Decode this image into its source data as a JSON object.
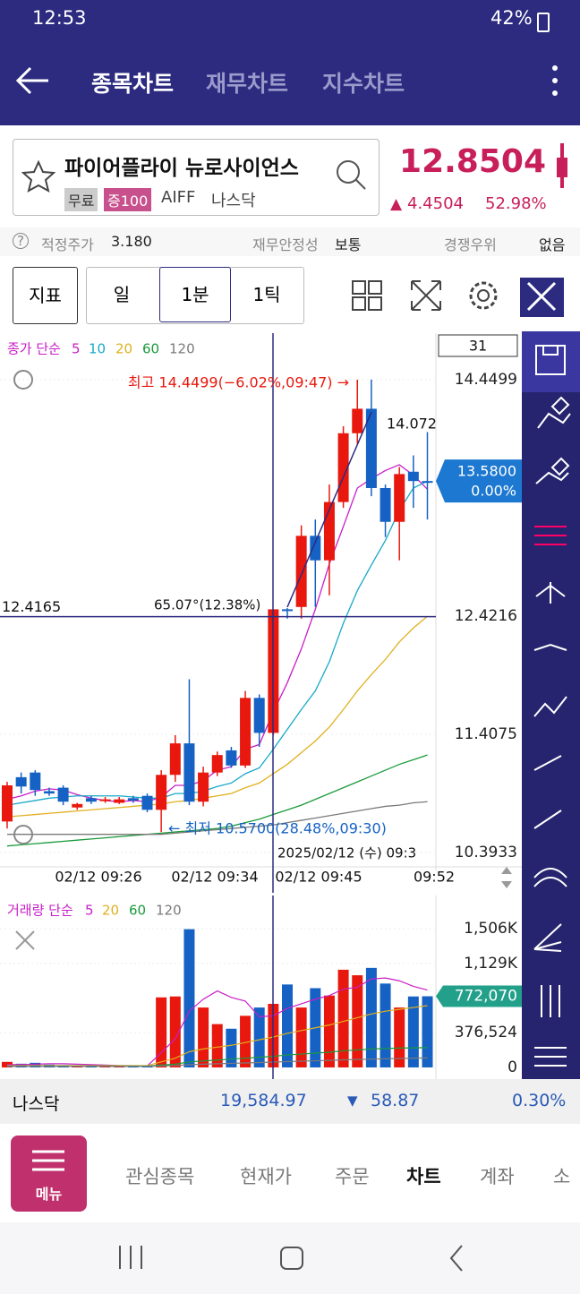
{
  "status": {
    "time": "12:53",
    "battery": "42%"
  },
  "header": {
    "tabs": [
      "종목차트",
      "재무차트",
      "지수차트"
    ]
  },
  "stock": {
    "name": "파이어플라이 뉴로사이언스",
    "badges": [
      "무료",
      "증100"
    ],
    "ticker": "AIFF",
    "market": "나스닥",
    "price": "12.8504",
    "change": "4.4504",
    "change_pct": "52.98%"
  },
  "info": {
    "fair_label": "적정주가",
    "fair_value": "3.180",
    "stability_label": "재무안정성",
    "stability_value": "보통",
    "comp_label": "경쟁우위",
    "comp_value": "없음"
  },
  "toolbar": {
    "indicator": "지표",
    "periods": [
      "일",
      "1분",
      "1틱"
    ]
  },
  "chart_data": {
    "type": "candlestick",
    "legend_label": "종가 단순",
    "period_box": "31",
    "up_color": "#e8180e",
    "down_color": "#1662c4",
    "open": [
      10.66,
      11.04,
      11.08,
      10.92,
      10.95,
      10.78,
      10.86,
      10.84,
      10.82,
      10.86,
      10.88,
      10.76,
      11.06,
      11.33,
      10.83,
      11.08,
      11.27,
      11.14,
      11.72,
      11.42,
      12.48,
      12.5,
      13.11,
      12.9,
      13.4,
      13.99,
      14.2,
      13.52,
      13.23,
      13.66,
      13.58
    ],
    "high": [
      11.0,
      11.08,
      11.1,
      10.95,
      10.97,
      10.82,
      10.88,
      10.87,
      10.87,
      10.88,
      10.9,
      11.1,
      11.4,
      11.88,
      11.13,
      11.26,
      11.3,
      11.78,
      11.75,
      12.48,
      12.49,
      13.2,
      13.25,
      13.55,
      14.05,
      14.4499,
      14.4499,
      13.55,
      13.7,
      13.8,
      14.0
    ],
    "low": [
      10.6,
      10.9,
      10.88,
      10.88,
      10.8,
      10.76,
      10.81,
      10.82,
      10.81,
      10.82,
      10.74,
      10.57,
      11.0,
      10.8,
      10.79,
      11.05,
      11.12,
      11.12,
      11.3,
      11.4,
      12.4,
      12.4,
      12.5,
      12.6,
      13.35,
      13.9,
      13.45,
      13.1,
      12.9,
      13.35,
      13.25
    ],
    "close": [
      10.97,
      10.96,
      10.93,
      10.9,
      10.83,
      10.81,
      10.83,
      10.85,
      10.85,
      10.84,
      10.76,
      11.06,
      11.33,
      10.83,
      11.08,
      11.23,
      11.14,
      11.72,
      11.42,
      12.48,
      12.48,
      13.11,
      12.9,
      13.4,
      13.99,
      14.2,
      13.52,
      13.23,
      13.64,
      13.58,
      13.58
    ],
    "series": [
      {
        "name": "5",
        "color": "#c81ec8",
        "values": [
          10.85,
          10.88,
          10.92,
          10.94,
          10.93,
          10.89,
          10.86,
          10.84,
          10.83,
          10.84,
          10.83,
          10.87,
          10.97,
          10.97,
          11.01,
          11.1,
          11.13,
          11.28,
          11.32,
          11.6,
          11.85,
          12.14,
          12.48,
          12.87,
          13.19,
          13.52,
          13.6,
          13.67,
          13.72,
          13.63,
          13.51
        ]
      },
      {
        "name": "10",
        "color": "#18a8c8",
        "values": [
          10.8,
          10.82,
          10.84,
          10.86,
          10.87,
          10.88,
          10.88,
          10.88,
          10.88,
          10.87,
          10.86,
          10.86,
          10.9,
          10.9,
          10.92,
          10.96,
          10.99,
          11.07,
          11.12,
          11.28,
          11.45,
          11.62,
          11.78,
          12.03,
          12.36,
          12.64,
          12.86,
          13.07,
          13.33,
          13.52,
          13.58
        ]
      },
      {
        "name": "20",
        "color": "#e0b020",
        "values": [
          10.7,
          10.71,
          10.72,
          10.73,
          10.74,
          10.75,
          10.76,
          10.77,
          10.78,
          10.79,
          10.8,
          10.81,
          10.83,
          10.84,
          10.86,
          10.88,
          10.9,
          10.95,
          10.99,
          11.07,
          11.15,
          11.25,
          11.35,
          11.47,
          11.62,
          11.78,
          11.92,
          12.05,
          12.2,
          12.32,
          12.42
        ]
      },
      {
        "name": "60",
        "color": "#1a9a3a",
        "values": [
          10.45,
          10.46,
          10.47,
          10.48,
          10.49,
          10.5,
          10.51,
          10.52,
          10.53,
          10.54,
          10.55,
          10.56,
          10.57,
          10.58,
          10.59,
          10.6,
          10.62,
          10.65,
          10.68,
          10.72,
          10.76,
          10.8,
          10.85,
          10.9,
          10.95,
          11.0,
          11.05,
          11.1,
          11.15,
          11.19,
          11.23
        ]
      },
      {
        "name": "120",
        "color": "#7a7a7a",
        "values": [
          10.55,
          10.55,
          10.55,
          10.55,
          10.55,
          10.55,
          10.55,
          10.55,
          10.55,
          10.55,
          10.55,
          10.55,
          10.56,
          10.57,
          10.58,
          10.59,
          10.6,
          10.61,
          10.62,
          10.63,
          10.65,
          10.67,
          10.69,
          10.71,
          10.73,
          10.75,
          10.77,
          10.79,
          10.8,
          10.82,
          10.83
        ]
      }
    ],
    "ylim": [
      10.2941,
      14.8256
    ],
    "yticks": [
      10.3933,
      11.4075,
      12.4216,
      14.4499
    ],
    "xtick_labels": [
      "02/12 09:26",
      "02/12 09:34",
      "02/12 09:45",
      "09:52"
    ],
    "last_price": "13.5800",
    "last_pct": "0.00%",
    "crosshair_price": 12.4165,
    "crosshair_time": "2025/02/12 (수) 09:3",
    "high_note": "최고 14.4499(−6.02%,09:47) →",
    "low_note": "← 최저 10.5700(28.48%,09:30)",
    "angle_note": "65.07°(12.38%)",
    "side_note": "14.072"
  },
  "volume_data": {
    "type": "bar",
    "legend_label": "거래량 단순",
    "values": [
      60000,
      40000,
      50000,
      30000,
      25000,
      20000,
      15000,
      15000,
      15000,
      15000,
      20000,
      760000,
      770000,
      1500000,
      650000,
      470000,
      420000,
      560000,
      650000,
      690000,
      900000,
      650000,
      860000,
      780000,
      1060000,
      1000000,
      1080000,
      910000,
      650000,
      770000,
      772070
    ],
    "series": [
      {
        "name": "5",
        "color": "#c81ec8",
        "values": [
          30000,
          30000,
          35000,
          40000,
          40000,
          35000,
          30000,
          25000,
          20000,
          18000,
          16000,
          160000,
          310000,
          610000,
          740000,
          830000,
          760000,
          720000,
          550000,
          560000,
          640000,
          690000,
          740000,
          780000,
          850000,
          870000,
          960000,
          970000,
          940000,
          880000,
          840000
        ]
      },
      {
        "name": "20",
        "color": "#e0b020",
        "values": [
          20000,
          20000,
          20000,
          20000,
          20000,
          20000,
          20000,
          20000,
          20000,
          20000,
          20000,
          60000,
          100000,
          170000,
          200000,
          220000,
          240000,
          270000,
          300000,
          330000,
          370000,
          400000,
          430000,
          460000,
          500000,
          540000,
          580000,
          610000,
          630000,
          650000,
          670000
        ]
      },
      {
        "name": "60",
        "color": "#1a9a3a",
        "values": [
          15000,
          15000,
          15000,
          15000,
          15000,
          15000,
          15000,
          15000,
          15000,
          15000,
          15000,
          25000,
          35000,
          60000,
          70000,
          80000,
          90000,
          100000,
          110000,
          120000,
          135000,
          145000,
          155000,
          165000,
          180000,
          190000,
          200000,
          205000,
          210000,
          212000,
          215000
        ]
      },
      {
        "name": "120",
        "color": "#7a7a7a",
        "values": [
          12000,
          12000,
          12000,
          12000,
          12000,
          12000,
          12000,
          12000,
          12000,
          12000,
          12000,
          16000,
          20000,
          30000,
          35000,
          40000,
          44000,
          48000,
          53000,
          58000,
          63000,
          68000,
          72000,
          76000,
          82000,
          86000,
          90000,
          94000,
          97000,
          100000,
          103000
        ]
      }
    ],
    "ylim": [
      -78000,
      1817000
    ],
    "yticks": [
      0,
      {
        "value": 376524,
        "label": "376,524"
      },
      {
        "value": 1129000,
        "label": "1,129K"
      },
      {
        "value": 1506000,
        "label": "1,506K"
      }
    ],
    "last": {
      "value": 772070,
      "label": "772,070"
    }
  },
  "index_bar": {
    "name": "나스닥",
    "value": "19,584.97",
    "change": "58.87",
    "pct": "0.30%"
  },
  "nav": {
    "menu": "메뉴",
    "items": [
      "관심종목",
      "현재가",
      "주문",
      "차트",
      "계좌",
      "소"
    ]
  }
}
